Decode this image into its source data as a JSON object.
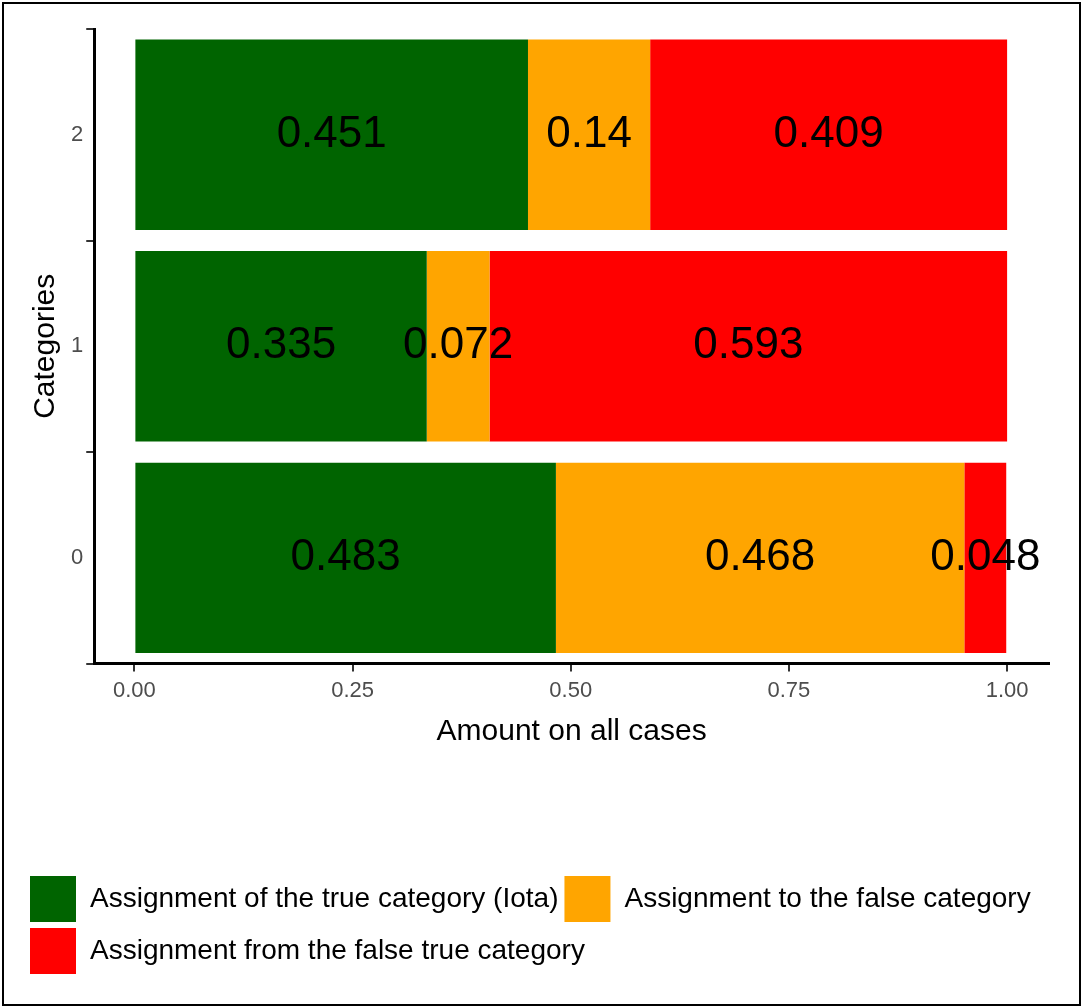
{
  "chart_data": {
    "type": "bar",
    "orientation": "horizontal",
    "stacked": true,
    "xlabel": "Amount on all cases",
    "ylabel": "Categories",
    "categories": [
      "2",
      "1",
      "0"
    ],
    "series": [
      {
        "name": "Assignment of the true category (Iota)",
        "color": "#006400",
        "values": [
          0.451,
          0.335,
          0.483
        ]
      },
      {
        "name": "Assignment to the false category",
        "color": "#ffa500",
        "values": [
          0.14,
          0.072,
          0.468
        ]
      },
      {
        "name": "Assignment from the false true category",
        "color": "#ff0000",
        "values": [
          0.409,
          0.593,
          0.048
        ]
      }
    ],
    "xlim": [
      -0.046,
      1.048
    ],
    "xticks": [
      {
        "value": 0,
        "label": "0.00"
      },
      {
        "value": 0.25,
        "label": "0.25"
      },
      {
        "value": 0.5,
        "label": "0.50"
      },
      {
        "value": 0.75,
        "label": "0.75"
      },
      {
        "value": 1,
        "label": "1.00"
      }
    ],
    "data_labels": true,
    "grid": false,
    "legend": "bottom left"
  }
}
